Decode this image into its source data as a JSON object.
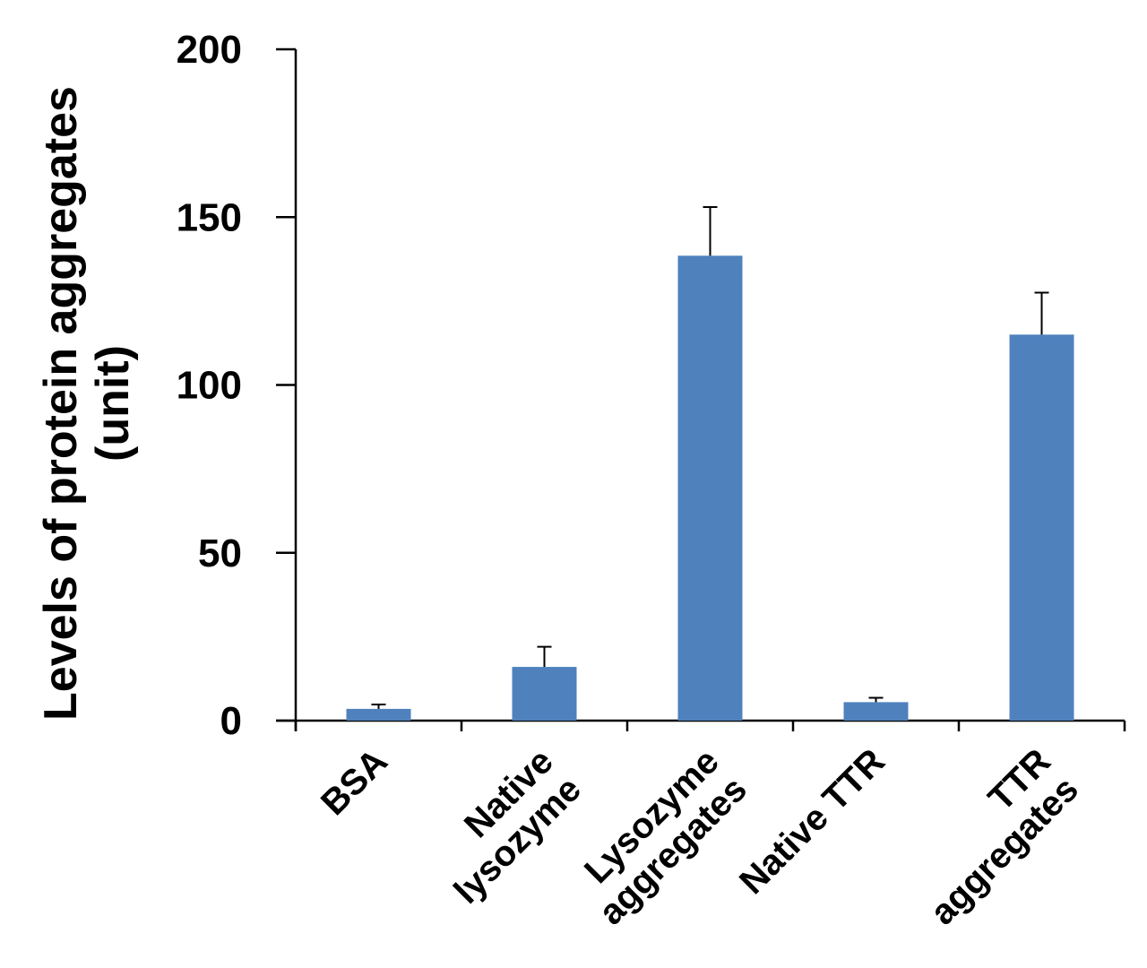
{
  "chart_data": {
    "type": "bar",
    "title": "",
    "xlabel": "",
    "ylabel": [
      "Levels of protein aggregates",
      "(unit)"
    ],
    "ylim": [
      0,
      200
    ],
    "yticks": [
      0,
      50,
      100,
      150,
      200
    ],
    "grid": false,
    "categories": [
      [
        "BSA"
      ],
      [
        "Native",
        "lysozyme"
      ],
      [
        "Lysozyme",
        "aggregates"
      ],
      [
        "Native TTR"
      ],
      [
        "TTR",
        "aggregates"
      ]
    ],
    "series": [
      {
        "values": [
          3.5,
          16,
          138.5,
          5.5,
          115
        ],
        "error": [
          1.3,
          6,
          14.5,
          1.3,
          12.5
        ]
      }
    ],
    "colors": {
      "bar": "#4f81bd",
      "axis": "#000000",
      "errorbar": "#000000"
    }
  }
}
